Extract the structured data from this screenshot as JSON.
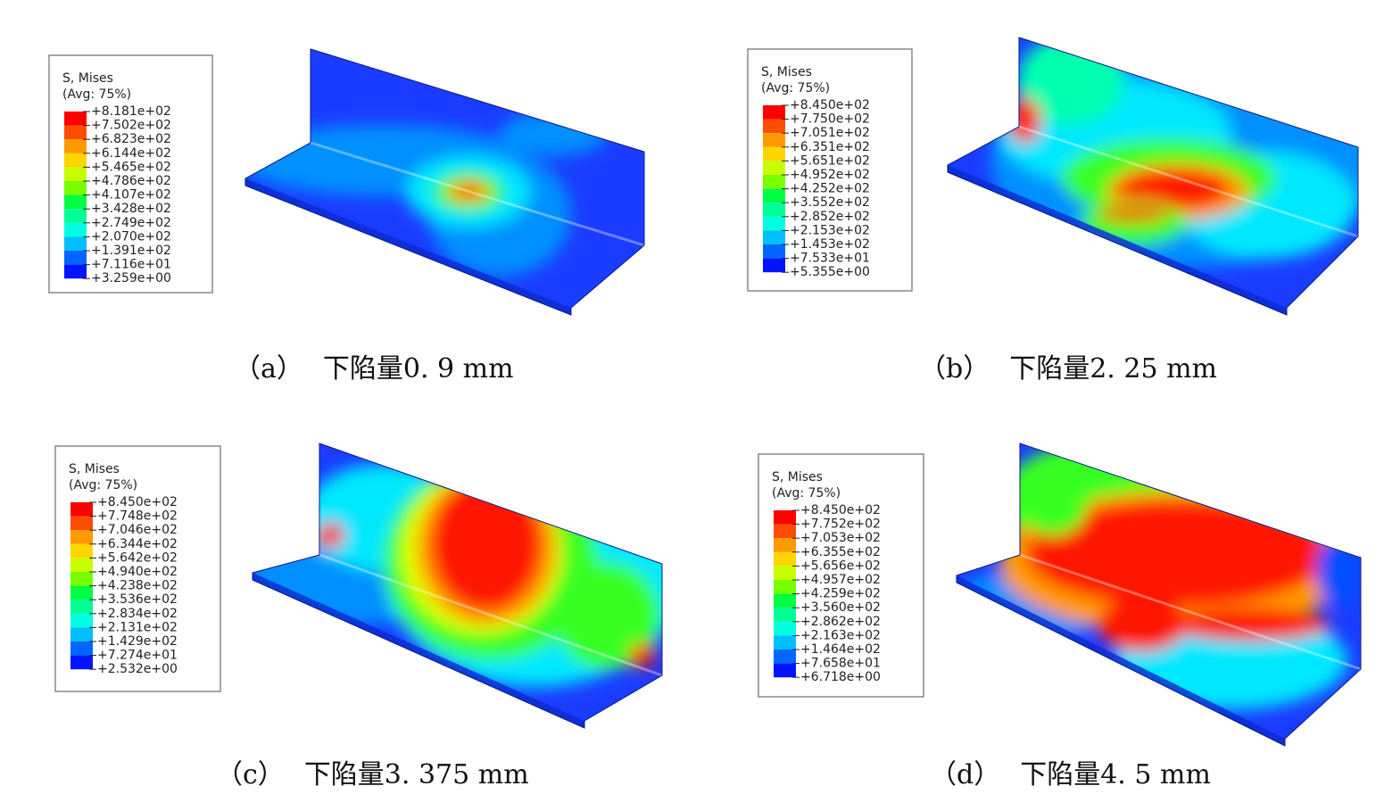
{
  "panels": [
    {
      "legend": {
        "title": "S, Mises",
        "subtitle": "(Avg: 75%)",
        "labels": [
          "+8.181e+02",
          "+7.502e+02",
          "+6.823e+02",
          "+6.144e+02",
          "+5.465e+02",
          "+4.786e+02",
          "+4.107e+02",
          "+3.428e+02",
          "+2.749e+02",
          "+2.070e+02",
          "+1.391e+02",
          "+7.116e+01",
          "+3.259e+00"
        ]
      },
      "caption": {
        "label": "（a）",
        "text": "下陷量0. 9 mm"
      }
    },
    {
      "legend": {
        "title": "S, Mises",
        "subtitle": "(Avg: 75%)",
        "labels": [
          "+8.450e+02",
          "+7.750e+02",
          "+7.051e+02",
          "+6.351e+02",
          "+5.651e+02",
          "+4.952e+02",
          "+4.252e+02",
          "+3.552e+02",
          "+2.852e+02",
          "+2.153e+02",
          "+1.453e+02",
          "+7.533e+01",
          "+5.355e+00"
        ]
      },
      "caption": {
        "label": "（b）",
        "text": "下陷量2. 25 mm"
      }
    },
    {
      "legend": {
        "title": "S, Mises",
        "subtitle": "(Avg: 75%)",
        "labels": [
          "+8.450e+02",
          "+7.748e+02",
          "+7.046e+02",
          "+6.344e+02",
          "+5.642e+02",
          "+4.940e+02",
          "+4.238e+02",
          "+3.536e+02",
          "+2.834e+02",
          "+2.131e+02",
          "+1.429e+02",
          "+7.274e+01",
          "+2.532e+00"
        ]
      },
      "caption": {
        "label": "（c）",
        "text": "下陷量3. 375 mm"
      }
    },
    {
      "legend": {
        "title": "S, Mises",
        "subtitle": "(Avg: 75%)",
        "labels": [
          "+8.450e+02",
          "+7.752e+02",
          "+7.053e+02",
          "+6.355e+02",
          "+5.656e+02",
          "+4.957e+02",
          "+4.259e+02",
          "+3.560e+02",
          "+2.862e+02",
          "+2.163e+02",
          "+1.464e+02",
          "+7.658e+01",
          "+6.718e+00"
        ]
      },
      "caption": {
        "label": "（d）",
        "text": "下陷量4. 5 mm"
      }
    }
  ]
}
